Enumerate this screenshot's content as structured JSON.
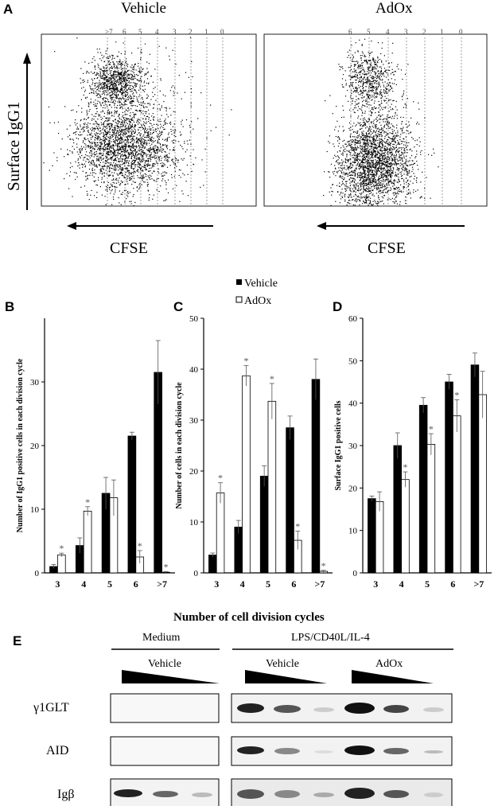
{
  "panels": {
    "a": "A",
    "b": "B",
    "c": "C",
    "d": "D",
    "e": "E"
  },
  "flow": {
    "left_title": "Vehicle",
    "right_title": "AdOx",
    "y_label": "Surface IgG1",
    "x_label": "CFSE",
    "left_div_labels": [
      ">7",
      "6",
      "5",
      "4",
      "3",
      "2",
      "1",
      "0"
    ],
    "right_div_labels": [
      "6",
      "5",
      "4",
      "3",
      "2",
      "1",
      "0"
    ]
  },
  "legend": {
    "vehicle": "Vehicle",
    "adox": "AdOx",
    "colors": {
      "vehicle": "#000000",
      "adox": "#ffffff"
    }
  },
  "shared_xlabel": "Number of cell division cycles",
  "chart_data": [
    {
      "type": "bar",
      "panel": "B",
      "ylabel": "Number of IgG1 positive cells in each division cycle",
      "categories": [
        "3",
        "4",
        "5",
        "6",
        ">7"
      ],
      "ylim": [
        0,
        40
      ],
      "yticks": [
        0,
        10,
        20,
        30
      ],
      "series": [
        {
          "name": "Vehicle",
          "values": [
            1.0,
            4.3,
            12.5,
            21.5,
            31.5
          ],
          "errors": [
            0.3,
            1.2,
            2.5,
            0.6,
            5.0
          ]
        },
        {
          "name": "AdOx",
          "values": [
            2.8,
            9.7,
            11.8,
            2.5,
            0.1
          ],
          "errors": [
            0.3,
            0.7,
            2.8,
            1.0,
            0.1
          ]
        }
      ],
      "significant": [
        [],
        [
          0,
          1,
          3,
          4
        ]
      ]
    },
    {
      "type": "bar",
      "panel": "C",
      "ylabel": "Number of cells in each division cycle",
      "categories": [
        "3",
        "4",
        "5",
        "6",
        ">7"
      ],
      "ylim": [
        0,
        50
      ],
      "yticks": [
        0,
        10,
        20,
        30,
        40,
        50
      ],
      "series": [
        {
          "name": "Vehicle",
          "values": [
            3.5,
            9.0,
            19.0,
            28.5,
            38.0
          ],
          "errors": [
            0.4,
            1.3,
            2.0,
            2.3,
            4.0
          ]
        },
        {
          "name": "AdOx",
          "values": [
            15.7,
            38.7,
            33.7,
            6.4,
            0.3
          ],
          "errors": [
            2.0,
            2.0,
            3.5,
            1.8,
            0.2
          ]
        }
      ],
      "significant": [
        [],
        [
          0,
          1,
          2,
          3,
          4
        ]
      ]
    },
    {
      "type": "bar",
      "panel": "D",
      "ylabel": "Surface IgG1 positive cells",
      "categories": [
        "3",
        "4",
        "5",
        "6",
        ">7"
      ],
      "ylim": [
        0,
        60
      ],
      "yticks": [
        0,
        10,
        20,
        30,
        40,
        50,
        60
      ],
      "series": [
        {
          "name": "Vehicle",
          "values": [
            17.5,
            30.0,
            39.5,
            45.0,
            49.0
          ],
          "errors": [
            0.6,
            3.0,
            1.8,
            1.8,
            2.8
          ]
        },
        {
          "name": "AdOx",
          "values": [
            16.8,
            22.0,
            30.3,
            37.0,
            42.0
          ],
          "errors": [
            2.3,
            1.8,
            2.5,
            3.8,
            5.5
          ]
        }
      ],
      "significant": [
        [],
        [
          1,
          2,
          3
        ]
      ]
    }
  ],
  "gel": {
    "medium": "Medium",
    "lps": "LPS/CD40L/IL-4",
    "vehicle": "Vehicle",
    "adox": "AdOx",
    "rows": [
      "γ1GLT",
      "AID",
      "Igβ"
    ]
  }
}
